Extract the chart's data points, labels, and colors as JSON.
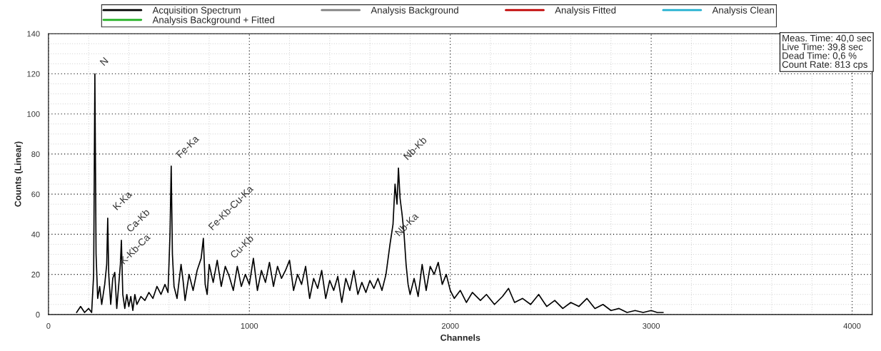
{
  "chart_data": {
    "type": "line",
    "xlabel": "Channels",
    "ylabel": "Counts (Linear)",
    "xlim": [
      0,
      4100
    ],
    "ylim": [
      0,
      140
    ],
    "xticks": [
      0,
      1000,
      2000,
      3000,
      4000
    ],
    "yticks": [
      0,
      20,
      40,
      60,
      80,
      100,
      120,
      140
    ],
    "grid": true,
    "legend": "top",
    "marker": "none",
    "line_style": "solid",
    "series": [
      {
        "name": "Acquisition Spectrum",
        "color": "#000000",
        "x": [
          140,
          160,
          180,
          200,
          215,
          225,
          231,
          237,
          245,
          255,
          265,
          280,
          290,
          295,
          300,
          310,
          320,
          330,
          340,
          350,
          358,
          363,
          370,
          380,
          390,
          400,
          410,
          420,
          430,
          440,
          460,
          480,
          500,
          520,
          540,
          560,
          580,
          595,
          605,
          611,
          617,
          625,
          640,
          660,
          670,
          680,
          700,
          720,
          740,
          760,
          771,
          780,
          790,
          800,
          820,
          840,
          860,
          880,
          900,
          920,
          940,
          960,
          980,
          1000,
          1020,
          1040,
          1060,
          1080,
          1100,
          1120,
          1140,
          1160,
          1180,
          1200,
          1220,
          1240,
          1260,
          1280,
          1300,
          1320,
          1340,
          1360,
          1380,
          1400,
          1420,
          1440,
          1460,
          1480,
          1500,
          1520,
          1540,
          1560,
          1580,
          1600,
          1620,
          1640,
          1660,
          1680,
          1700,
          1715,
          1725,
          1735,
          1742,
          1750,
          1760,
          1770,
          1780,
          1790,
          1800,
          1820,
          1840,
          1860,
          1880,
          1900,
          1920,
          1940,
          1960,
          1980,
          2000,
          2020,
          2050,
          2080,
          2110,
          2150,
          2180,
          2220,
          2260,
          2290,
          2320,
          2360,
          2400,
          2440,
          2480,
          2520,
          2560,
          2600,
          2640,
          2680,
          2720,
          2760,
          2800,
          2840,
          2880,
          2920,
          2960,
          3000,
          3030,
          3060
        ],
        "values": [
          1,
          4,
          1,
          3,
          1,
          20,
          120,
          30,
          8,
          14,
          5,
          15,
          25,
          48,
          20,
          5,
          18,
          21,
          3,
          15,
          25,
          37,
          10,
          3,
          10,
          4,
          9,
          2,
          10,
          5,
          9,
          7,
          11,
          8,
          14,
          10,
          15,
          11,
          40,
          74,
          30,
          14,
          8,
          25,
          17,
          7,
          20,
          12,
          22,
          28,
          38,
          15,
          10,
          25,
          16,
          27,
          14,
          24,
          19,
          12,
          24,
          14,
          20,
          15,
          28,
          12,
          22,
          16,
          26,
          14,
          24,
          18,
          22,
          27,
          12,
          20,
          15,
          24,
          8,
          18,
          13,
          22,
          8,
          17,
          12,
          19,
          6,
          18,
          12,
          22,
          10,
          16,
          11,
          17,
          13,
          18,
          12,
          20,
          35,
          45,
          65,
          55,
          73,
          58,
          50,
          40,
          25,
          15,
          10,
          18,
          9,
          25,
          12,
          24,
          20,
          26,
          15,
          20,
          12,
          8,
          12,
          6,
          11,
          7,
          10,
          5,
          9,
          13,
          6,
          8,
          5,
          10,
          4,
          7,
          3,
          6,
          4,
          8,
          3,
          5,
          2,
          3,
          1,
          2,
          1,
          2,
          1,
          1
        ]
      },
      {
        "name": "Analysis Background",
        "color": "#808080"
      },
      {
        "name": "Analysis Fitted",
        "color": "#c00000"
      },
      {
        "name": "Analysis Clean",
        "color": "#20b0d0"
      },
      {
        "name": "Analysis Background + Fitted",
        "color": "#20b020"
      }
    ],
    "annotations": [
      {
        "text": "N",
        "x": 231,
        "y": 120
      },
      {
        "text": "K-Kb-Ca",
        "x": 330,
        "y": 21
      },
      {
        "text": "K-Ka",
        "x": 295,
        "y": 48
      },
      {
        "text": "Ca-Kb",
        "x": 363,
        "y": 37
      },
      {
        "text": "Fe-Ka",
        "x": 611,
        "y": 74
      },
      {
        "text": "Fe-Kb-Cu-Ka",
        "x": 771,
        "y": 38
      },
      {
        "text": "Cu-Kb",
        "x": 880,
        "y": 24
      },
      {
        "text": "Nb-Ka",
        "x": 1700,
        "y": 35
      },
      {
        "text": "Nb-Kb",
        "x": 1742,
        "y": 73
      },
      "Meas. Time: 40,0 sec\nLive Time: 39,8 sec\nDead Time: 0,6 %\nCount Rate: 813 cps"
    ]
  }
}
